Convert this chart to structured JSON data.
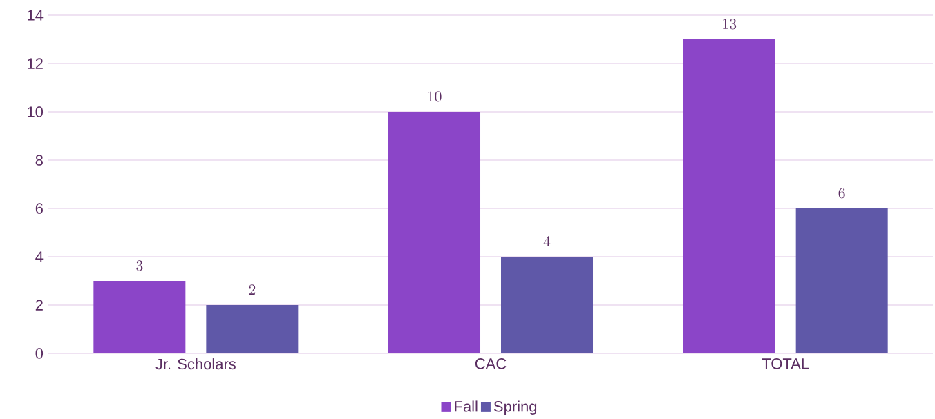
{
  "chart_data": {
    "type": "bar",
    "categories": [
      "Jr. Scholars",
      "CAC",
      "TOTAL"
    ],
    "series": [
      {
        "name": "Fall",
        "color": "#8b45c8",
        "values": [
          3,
          10,
          13
        ]
      },
      {
        "name": "Spring",
        "color": "#5f58a8",
        "values": [
          2,
          4,
          6
        ]
      }
    ],
    "ylim": [
      0,
      14
    ],
    "yticks": [
      0,
      2,
      4,
      6,
      8,
      10,
      12,
      14
    ],
    "grid": "y",
    "legend": "bottom",
    "data_labels": true
  }
}
